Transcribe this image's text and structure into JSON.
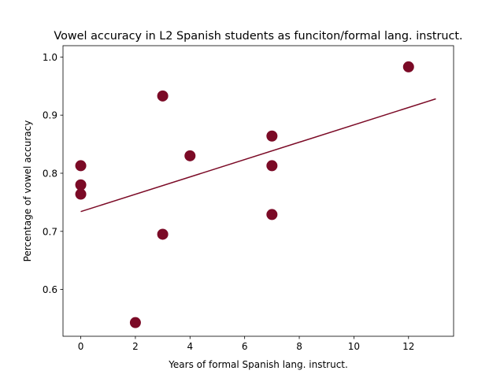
{
  "chart_data": {
    "type": "scatter",
    "title": "Vowel accuracy in L2 Spanish students as funciton/formal lang. instruct.",
    "xlabel": "Years of formal Spanish lang. instruct.",
    "ylabel": "Percentage of vowel accuracy",
    "xlim": [
      -0.65,
      13.65
    ],
    "ylim": [
      0.5195,
      1.0195
    ],
    "xticks": [
      "0",
      "2",
      "4",
      "6",
      "8",
      "10",
      "12"
    ],
    "yticks": [
      "0.6",
      "0.7",
      "0.8",
      "0.9",
      "1.0"
    ],
    "grid": false,
    "colors": {
      "points": "#7b0a26",
      "trend": "#7b0a26"
    },
    "points": [
      {
        "x": 0,
        "y": 0.813
      },
      {
        "x": 0,
        "y": 0.78
      },
      {
        "x": 0,
        "y": 0.764
      },
      {
        "x": 2,
        "y": 0.543
      },
      {
        "x": 3,
        "y": 0.933
      },
      {
        "x": 3,
        "y": 0.695
      },
      {
        "x": 4,
        "y": 0.83
      },
      {
        "x": 7,
        "y": 0.864
      },
      {
        "x": 7,
        "y": 0.813
      },
      {
        "x": 7,
        "y": 0.729
      },
      {
        "x": 12,
        "y": 0.983
      }
    ],
    "trendline": {
      "x": [
        0,
        13
      ],
      "y": [
        0.734,
        0.928
      ]
    }
  }
}
